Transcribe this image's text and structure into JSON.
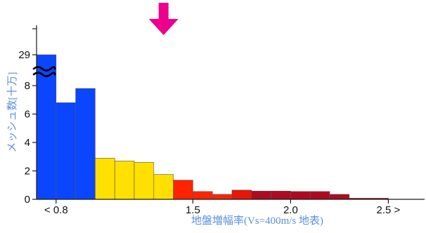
{
  "chart_data": {
    "type": "bar",
    "title": "",
    "xlabel": "地盤増幅率(Vs=400m/s 地表)",
    "ylabel": "メッシュ数[十万]",
    "x_ticks": [
      {
        "value": 0.8,
        "label": "< 0.8"
      },
      {
        "value": 1.5,
        "label": "1.5"
      },
      {
        "value": 2.0,
        "label": "2.0"
      },
      {
        "value": 2.5,
        "label": "2.5 >"
      }
    ],
    "y_ticks": [
      {
        "value": 0,
        "label": "0"
      },
      {
        "value": 2,
        "label": "2"
      },
      {
        "value": 4,
        "label": "4"
      },
      {
        "value": 6,
        "label": "6"
      },
      {
        "value": 8,
        "label": "8"
      },
      {
        "value": 29,
        "label": "29"
      }
    ],
    "axis_break": {
      "symbol": "≈",
      "between": [
        8,
        29
      ]
    },
    "bin_width": 0.1,
    "bins": [
      {
        "x": [
          0.7,
          0.8
        ],
        "value": 29,
        "color": "#0a46ff",
        "label": "< 0.8"
      },
      {
        "x": [
          0.8,
          0.9
        ],
        "value": 6.8,
        "color": "#0a46ff"
      },
      {
        "x": [
          0.9,
          1.0
        ],
        "value": 7.8,
        "color": "#0a46ff"
      },
      {
        "x": [
          1.0,
          1.1
        ],
        "value": 2.9,
        "color": "#ffe000"
      },
      {
        "x": [
          1.1,
          1.2
        ],
        "value": 2.7,
        "color": "#ffe000"
      },
      {
        "x": [
          1.2,
          1.3
        ],
        "value": 2.6,
        "color": "#ffe000"
      },
      {
        "x": [
          1.3,
          1.4
        ],
        "value": 1.75,
        "color": "#ffe000"
      },
      {
        "x": [
          1.4,
          1.5
        ],
        "value": 1.35,
        "color": "#ff2400"
      },
      {
        "x": [
          1.5,
          1.6
        ],
        "value": 0.55,
        "color": "#ff2400"
      },
      {
        "x": [
          1.6,
          1.7
        ],
        "value": 0.35,
        "color": "#ff2400"
      },
      {
        "x": [
          1.7,
          1.8
        ],
        "value": 0.65,
        "color": "#e8150a"
      },
      {
        "x": [
          1.8,
          1.9
        ],
        "value": 0.58,
        "color": "#b00a1f"
      },
      {
        "x": [
          1.9,
          2.0
        ],
        "value": 0.58,
        "color": "#b00a1f"
      },
      {
        "x": [
          2.0,
          2.1
        ],
        "value": 0.55,
        "color": "#b00a1f"
      },
      {
        "x": [
          2.1,
          2.2
        ],
        "value": 0.55,
        "color": "#b00a1f"
      },
      {
        "x": [
          2.2,
          2.3
        ],
        "value": 0.35,
        "color": "#b00a1f"
      },
      {
        "x": [
          2.3,
          2.4
        ],
        "value": 0.08,
        "color": "#b00a1f"
      },
      {
        "x": [
          2.4,
          2.5
        ],
        "value": 0.08,
        "color": "#b00a1f"
      }
    ],
    "marker": {
      "type": "arrow-down",
      "x": 1.35,
      "color": "#ec008c"
    },
    "colors": {
      "axis": "#1a1a1a",
      "axis_label": "#5b8fe0",
      "bar_edge": "#555555"
    },
    "grid": false,
    "legend": "none"
  }
}
